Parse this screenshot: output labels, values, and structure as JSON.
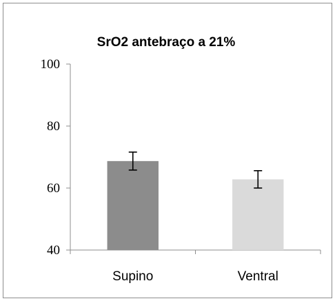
{
  "chart_data": {
    "type": "bar",
    "title": "SrO2 antebraço a 21%",
    "xlabel": "",
    "ylabel": "",
    "categories": [
      "Supino",
      "Ventral"
    ],
    "series": [
      {
        "values": [
          68.7,
          62.8
        ],
        "error": [
          2.9,
          2.8
        ],
        "colors": [
          "#8c8c8c",
          "#dadada"
        ]
      }
    ],
    "ylim": [
      40,
      100
    ],
    "yticks": [
      40,
      60,
      80,
      100
    ],
    "grid": false,
    "legend": "none"
  }
}
